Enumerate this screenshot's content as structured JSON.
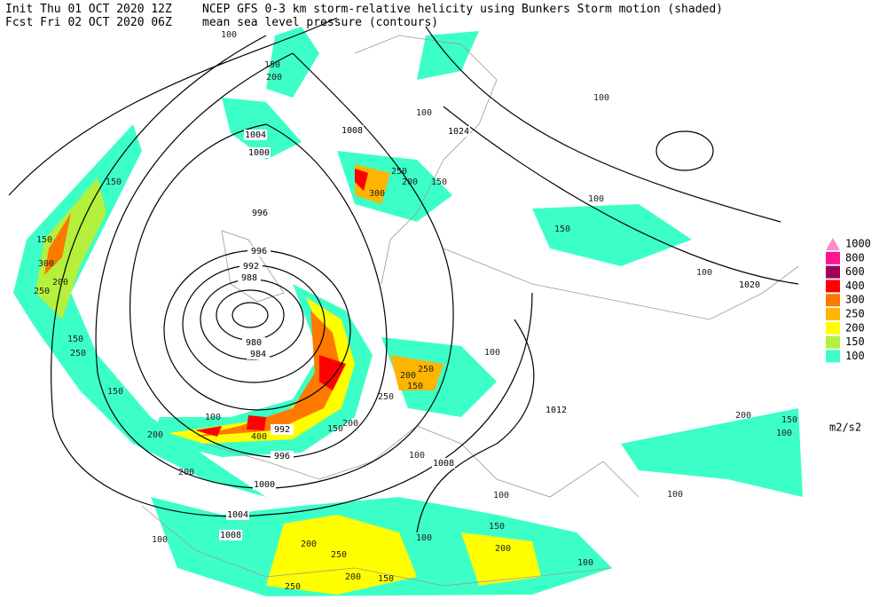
{
  "header": {
    "init": "Init  Thu 01 OCT 2020 12Z",
    "forecast": "Fcst Fri 02 OCT 2020 06Z",
    "title": "NCEP GFS 0-3 km storm-relative helicity using Bunkers Storm motion (shaded)",
    "subtitle": "mean sea level pressure (contours)"
  },
  "legend": {
    "levels": [
      {
        "label": "1000",
        "color": "#ff8cc6"
      },
      {
        "label": "800",
        "color": "#ff1493"
      },
      {
        "label": "600",
        "color": "#a0005a"
      },
      {
        "label": "400",
        "color": "#ff0000"
      },
      {
        "label": "300",
        "color": "#ff7800"
      },
      {
        "label": "250",
        "color": "#ffb400"
      },
      {
        "label": "200",
        "color": "#ffff00"
      },
      {
        "label": "150",
        "color": "#b4f03c"
      },
      {
        "label": "100",
        "color": "#3cffc8"
      }
    ],
    "unit": "m2/s2"
  },
  "pressure_contour_labels": [
    1004,
    1000,
    1008,
    1024,
    996,
    996,
    992,
    988,
    980,
    984,
    992,
    996,
    1000,
    1004,
    1008,
    1008,
    1012,
    1020
  ],
  "helicity_contour_labels": [
    100,
    150,
    200,
    150,
    150,
    300,
    250,
    200,
    150,
    250,
    150,
    200,
    100,
    400,
    200,
    100,
    250,
    200,
    250,
    200,
    150,
    100,
    200,
    150,
    100,
    100,
    100,
    250,
    300,
    200,
    150,
    150,
    100,
    100,
    100,
    200,
    150,
    100,
    200,
    150,
    150,
    100,
    250,
    200,
    250,
    100,
    100
  ]
}
